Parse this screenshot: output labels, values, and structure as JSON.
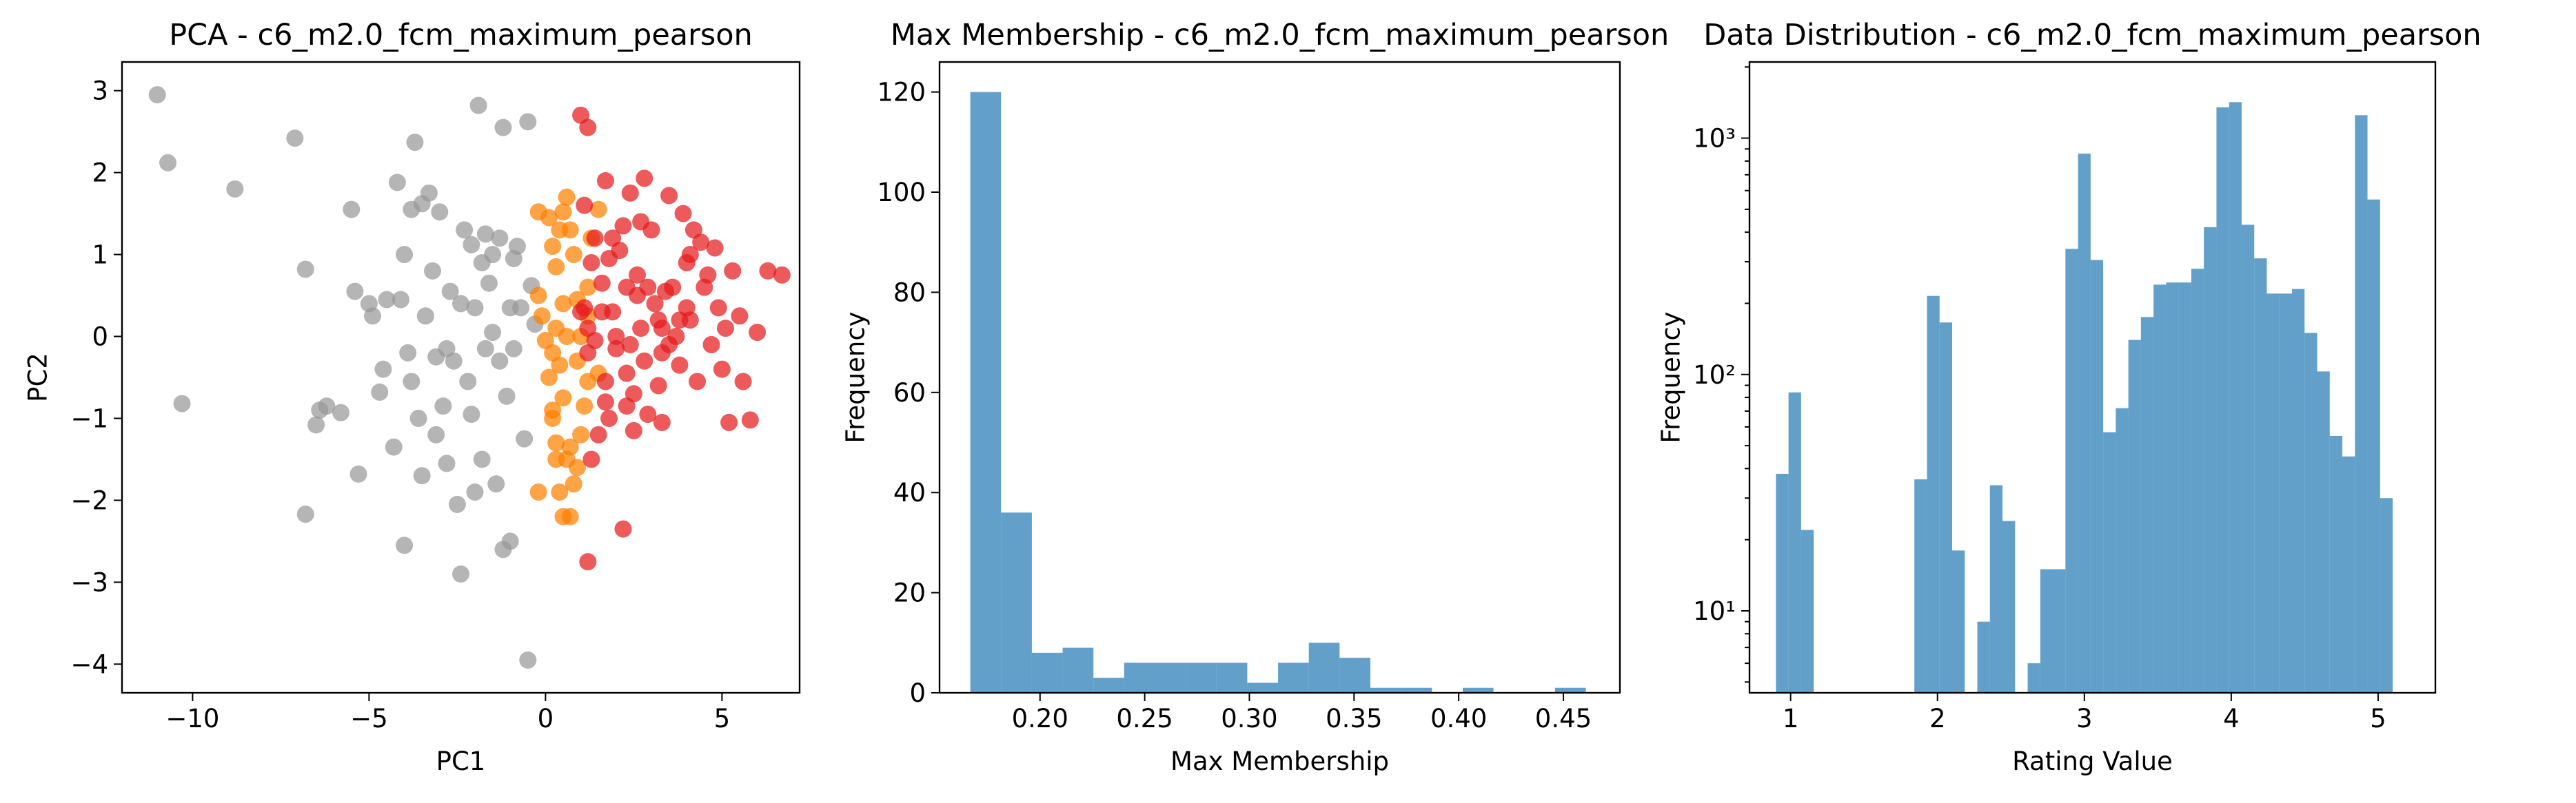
{
  "chart_data": [
    {
      "type": "scatter",
      "title": "PCA - c6_m2.0_fcm_maximum_pearson",
      "xlabel": "PC1",
      "ylabel": "PC2",
      "xlim": [
        -12,
        7.2
      ],
      "ylim": [
        -4.35,
        3.35
      ],
      "xticks": [
        -10,
        -5,
        0,
        5
      ],
      "xtick_labels": [
        "−10",
        "−5",
        "0",
        "5"
      ],
      "yticks": [
        -4,
        -3,
        -2,
        -1,
        0,
        1,
        2,
        3
      ],
      "ytick_labels": [
        "−4",
        "−3",
        "−2",
        "−1",
        "0",
        "1",
        "2",
        "3"
      ],
      "grid": false,
      "series": [
        {
          "color": "#999999",
          "points": [
            [
              -11,
              2.95
            ],
            [
              -10.7,
              2.12
            ],
            [
              -10.3,
              -0.82
            ],
            [
              -8.8,
              1.8
            ],
            [
              -7.1,
              2.42
            ],
            [
              -6.8,
              0.82
            ],
            [
              -6.8,
              -2.17
            ],
            [
              -6.5,
              -1.08
            ],
            [
              -6.4,
              -0.9
            ],
            [
              -6.2,
              -0.85
            ],
            [
              -5.8,
              -0.93
            ],
            [
              -5.5,
              1.55
            ],
            [
              -5.4,
              0.55
            ],
            [
              -5.3,
              -1.68
            ],
            [
              -5,
              0.4
            ],
            [
              -4.9,
              0.25
            ],
            [
              -4.7,
              -0.68
            ],
            [
              -4.6,
              -0.4
            ],
            [
              -4.5,
              0.45
            ],
            [
              -4.3,
              -1.35
            ],
            [
              -4.2,
              1.88
            ],
            [
              -4.1,
              0.45
            ],
            [
              -4,
              1.0
            ],
            [
              -4,
              -2.55
            ],
            [
              -3.9,
              -0.2
            ],
            [
              -3.8,
              1.55
            ],
            [
              -3.8,
              -0.55
            ],
            [
              -3.7,
              2.37
            ],
            [
              -3.6,
              -1.0
            ],
            [
              -3.5,
              1.62
            ],
            [
              -3.5,
              -1.7
            ],
            [
              -3.4,
              0.25
            ],
            [
              -3.3,
              1.75
            ],
            [
              -3.2,
              0.8
            ],
            [
              -3.1,
              -0.25
            ],
            [
              -3.1,
              -1.2
            ],
            [
              -3,
              1.52
            ],
            [
              -2.9,
              -0.85
            ],
            [
              -2.8,
              -0.15
            ],
            [
              -2.8,
              -1.55
            ],
            [
              -2.7,
              0.55
            ],
            [
              -2.6,
              -0.3
            ],
            [
              -2.5,
              -2.05
            ],
            [
              -2.4,
              0.4
            ],
            [
              -2.4,
              -2.9
            ],
            [
              -2.3,
              1.3
            ],
            [
              -2.2,
              -0.55
            ],
            [
              -2.1,
              1.12
            ],
            [
              -2.1,
              -0.95
            ],
            [
              -2,
              0.35
            ],
            [
              -2,
              -1.9
            ],
            [
              -1.9,
              2.82
            ],
            [
              -1.8,
              0.9
            ],
            [
              -1.8,
              -1.5
            ],
            [
              -1.7,
              1.25
            ],
            [
              -1.7,
              -0.15
            ],
            [
              -1.6,
              0.65
            ],
            [
              -1.5,
              1.0
            ],
            [
              -1.5,
              0.05
            ],
            [
              -1.4,
              -1.8
            ],
            [
              -1.3,
              1.2
            ],
            [
              -1.3,
              -0.3
            ],
            [
              -1.2,
              -2.6
            ],
            [
              -1.2,
              2.55
            ],
            [
              -1.1,
              -0.73
            ],
            [
              -1,
              0.35
            ],
            [
              -1,
              -2.5
            ],
            [
              -0.9,
              0.95
            ],
            [
              -0.9,
              -0.15
            ],
            [
              -0.8,
              1.1
            ],
            [
              -0.7,
              0.35
            ],
            [
              -0.6,
              -1.25
            ],
            [
              -0.5,
              2.62
            ],
            [
              -0.5,
              -3.95
            ],
            [
              -0.4,
              0.62
            ],
            [
              -0.3,
              0.15
            ]
          ]
        },
        {
          "color": "#ff7f00",
          "points": [
            [
              -0.2,
              1.52
            ],
            [
              0.1,
              1.45
            ],
            [
              0.2,
              1.1
            ],
            [
              0.3,
              0.85
            ],
            [
              0.4,
              1.3
            ],
            [
              0.5,
              1.52
            ],
            [
              0.6,
              1.7
            ],
            [
              0.7,
              1.3
            ],
            [
              0.8,
              1.0
            ],
            [
              0.5,
              0.4
            ],
            [
              0.3,
              0.1
            ],
            [
              0.2,
              -0.2
            ],
            [
              0.4,
              -0.35
            ],
            [
              0.5,
              -0.75
            ],
            [
              0.3,
              -1.3
            ],
            [
              0.6,
              -1.5
            ],
            [
              0.8,
              -1.8
            ],
            [
              1,
              -1.2
            ],
            [
              1.1,
              -0.85
            ],
            [
              1.2,
              -0.55
            ],
            [
              0.9,
              -0.3
            ],
            [
              1,
              0.0
            ],
            [
              1.2,
              0.6
            ],
            [
              1.3,
              1.2
            ],
            [
              0.7,
              -1.35
            ],
            [
              0.4,
              -1.9
            ],
            [
              0.5,
              -2.2
            ],
            [
              0.7,
              -2.2
            ],
            [
              0.9,
              -1.6
            ],
            [
              -0.2,
              0.5
            ],
            [
              -0.1,
              0.25
            ],
            [
              0,
              -0.05
            ],
            [
              0.1,
              -0.5
            ],
            [
              0.2,
              -1.0
            ],
            [
              0.3,
              -1.5
            ],
            [
              1.5,
              1.55
            ],
            [
              1.5,
              -0.45
            ],
            [
              0.9,
              0.45
            ],
            [
              1.2,
              0.25
            ],
            [
              0.6,
              0.0
            ],
            [
              -0.2,
              -1.9
            ],
            [
              0.2,
              -0.9
            ]
          ]
        },
        {
          "color": "#e41a1c",
          "points": [
            [
              1,
              2.7
            ],
            [
              1.2,
              2.55
            ],
            [
              1.1,
              1.6
            ],
            [
              1.4,
              1.2
            ],
            [
              1.6,
              0.65
            ],
            [
              1.7,
              1.9
            ],
            [
              1.8,
              0.95
            ],
            [
              1.9,
              0.3
            ],
            [
              2,
              -0.15
            ],
            [
              2.1,
              1.05
            ],
            [
              2.2,
              1.35
            ],
            [
              2.3,
              0.6
            ],
            [
              2.3,
              -0.45
            ],
            [
              2.4,
              1.75
            ],
            [
              2.5,
              -0.7
            ],
            [
              2.6,
              0.75
            ],
            [
              2.7,
              0.1
            ],
            [
              2.8,
              1.93
            ],
            [
              2.9,
              -0.95
            ],
            [
              3,
              1.3
            ],
            [
              3.1,
              0.4
            ],
            [
              3.2,
              0.2
            ],
            [
              3.3,
              -0.2
            ],
            [
              3.3,
              -1.05
            ],
            [
              3.5,
              1.72
            ],
            [
              3.6,
              0.6
            ],
            [
              3.7,
              0.0
            ],
            [
              3.8,
              -0.35
            ],
            [
              3.9,
              1.5
            ],
            [
              4,
              0.9
            ],
            [
              4,
              0.35
            ],
            [
              4.1,
              0.2
            ],
            [
              4.2,
              1.3
            ],
            [
              4.3,
              -0.55
            ],
            [
              4.4,
              1.15
            ],
            [
              4.5,
              0.6
            ],
            [
              4.7,
              -0.1
            ],
            [
              4.8,
              1.08
            ],
            [
              4.9,
              0.35
            ],
            [
              5,
              -0.4
            ],
            [
              5.2,
              -1.05
            ],
            [
              5.3,
              0.8
            ],
            [
              5.5,
              0.25
            ],
            [
              5.6,
              -0.55
            ],
            [
              5.8,
              -1.02
            ],
            [
              6,
              0.05
            ],
            [
              6.3,
              0.8
            ],
            [
              6.7,
              0.75
            ],
            [
              2.2,
              -2.35
            ],
            [
              1.2,
              -2.75
            ],
            [
              1.3,
              -1.5
            ],
            [
              1.5,
              -1.2
            ],
            [
              1.7,
              -0.55
            ],
            [
              1.8,
              -1.0
            ],
            [
              2.3,
              -0.85
            ],
            [
              2.5,
              -1.15
            ],
            [
              2.8,
              -0.3
            ],
            [
              3.2,
              -0.6
            ],
            [
              1.1,
              0.35
            ],
            [
              1.3,
              0.9
            ],
            [
              1.6,
              0.3
            ],
            [
              2,
              0.0
            ],
            [
              2.6,
              0.5
            ],
            [
              3.4,
              0.55
            ],
            [
              4.1,
              1.0
            ],
            [
              1.4,
              -0.05
            ],
            [
              1.9,
              1.2
            ],
            [
              2.7,
              1.4
            ],
            [
              3.8,
              0.2
            ],
            [
              4.6,
              0.75
            ],
            [
              5.1,
              0.1
            ],
            [
              1.2,
              -0.2
            ],
            [
              2.4,
              -0.1
            ],
            [
              3.5,
              -0.1
            ],
            [
              1.0,
              0.3
            ],
            [
              1.7,
              -0.8
            ],
            [
              1.2,
              0.1
            ],
            [
              2.9,
              0.6
            ],
            [
              3.3,
              0.1
            ]
          ]
        }
      ]
    },
    {
      "type": "bar",
      "title": "Max Membership - c6_m2.0_fcm_maximum_pearson",
      "xlabel": "Max Membership",
      "ylabel": "Frequency",
      "xlim": [
        0.152,
        0.477
      ],
      "ylim": [
        0,
        126
      ],
      "xticks": [
        0.2,
        0.25,
        0.3,
        0.35,
        0.4,
        0.45
      ],
      "xtick_labels": [
        "0.20",
        "0.25",
        "0.30",
        "0.35",
        "0.40",
        "0.45"
      ],
      "yticks": [
        0,
        20,
        40,
        60,
        80,
        100,
        120
      ],
      "ytick_labels": [
        "0",
        "20",
        "40",
        "60",
        "80",
        "100",
        "120"
      ],
      "grid": false,
      "color": "#1f77b4",
      "bin_start": 0.1667,
      "bin_width": 0.0147,
      "values": [
        120,
        36,
        8,
        9,
        3,
        6,
        6,
        6,
        6,
        2,
        6,
        10,
        7,
        1,
        1,
        0,
        1,
        0,
        0,
        1
      ]
    },
    {
      "type": "bar",
      "title": "Data Distribution - c6_m2.0_fcm_maximum_pearson",
      "xlabel": "Rating Value",
      "ylabel": "Frequency",
      "yscale": "log",
      "xlim": [
        0.72,
        5.39
      ],
      "ylim": [
        4.5,
        2100
      ],
      "xticks": [
        1,
        2,
        3,
        4,
        5
      ],
      "xtick_labels": [
        "1",
        "2",
        "3",
        "4",
        "5"
      ],
      "yticks": [
        10,
        100,
        1000
      ],
      "ytick_labels": [
        "10¹",
        "10²",
        "10³"
      ],
      "grid": false,
      "color": "#1f77b4",
      "bin_start": 0.9,
      "bin_width": 0.0857,
      "values": [
        38,
        84,
        22,
        0,
        0,
        0,
        0,
        0,
        0,
        0,
        0,
        36,
        215,
        166,
        18,
        0,
        9,
        34,
        24,
        0,
        6,
        15,
        15,
        340,
        860,
        305,
        57,
        72,
        140,
        175,
        240,
        245,
        245,
        280,
        420,
        1350,
        1420,
        430,
        310,
        220,
        220,
        230,
        150,
        103,
        55,
        45,
        1250,
        550,
        30
      ]
    }
  ]
}
